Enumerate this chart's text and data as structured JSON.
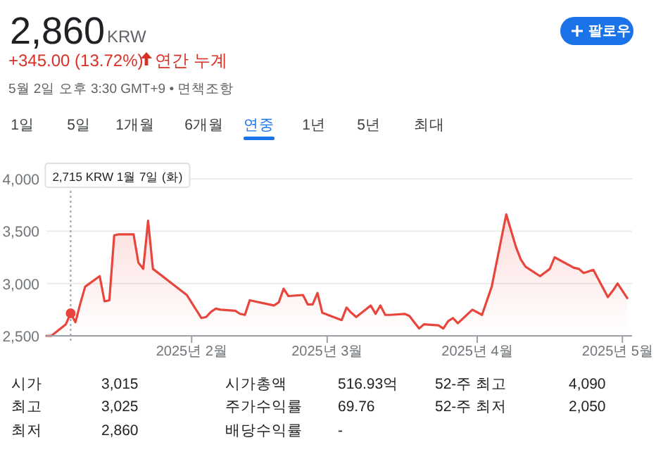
{
  "chart_data": {
    "type": "area",
    "title": "2,860",
    "color": "#e8453c",
    "x": [
      "2025-01-02",
      "2025-01-03",
      "2025-01-06",
      "2025-01-07",
      "2025-01-08",
      "2025-01-09",
      "2025-01-10",
      "2025-01-13",
      "2025-01-14",
      "2025-01-15",
      "2025-01-16",
      "2025-01-17",
      "2025-01-20",
      "2025-01-21",
      "2025-01-22",
      "2025-01-23",
      "2025-01-24",
      "2025-01-31",
      "2025-02-03",
      "2025-02-04",
      "2025-02-05",
      "2025-02-06",
      "2025-02-07",
      "2025-02-10",
      "2025-02-11",
      "2025-02-12",
      "2025-02-13",
      "2025-02-14",
      "2025-02-17",
      "2025-02-18",
      "2025-02-19",
      "2025-02-20",
      "2025-02-21",
      "2025-02-24",
      "2025-02-25",
      "2025-02-26",
      "2025-02-27",
      "2025-02-28",
      "2025-03-04",
      "2025-03-05",
      "2025-03-06",
      "2025-03-07",
      "2025-03-10",
      "2025-03-11",
      "2025-03-12",
      "2025-03-13",
      "2025-03-14",
      "2025-03-17",
      "2025-03-18",
      "2025-03-19",
      "2025-03-20",
      "2025-03-21",
      "2025-03-24",
      "2025-03-25",
      "2025-03-26",
      "2025-03-27",
      "2025-03-28",
      "2025-03-31",
      "2025-04-02",
      "2025-04-04",
      "2025-04-07",
      "2025-04-09",
      "2025-04-10",
      "2025-04-11",
      "2025-04-14",
      "2025-04-16",
      "2025-04-17",
      "2025-04-21",
      "2025-04-22",
      "2025-04-23",
      "2025-04-25",
      "2025-04-28",
      "2025-04-29",
      "2025-04-30",
      "2025-05-02"
    ],
    "values": [
      2500,
      2500,
      2610,
      2715,
      2630,
      2810,
      2970,
      3070,
      2830,
      2840,
      3460,
      3470,
      3470,
      3200,
      3140,
      3600,
      3140,
      2890,
      2670,
      2680,
      2730,
      2760,
      2750,
      2740,
      2710,
      2700,
      2840,
      2830,
      2800,
      2790,
      2820,
      2950,
      2880,
      2890,
      2800,
      2800,
      2910,
      2720,
      2650,
      2770,
      2720,
      2680,
      2790,
      2710,
      2790,
      2700,
      2700,
      2710,
      2690,
      2630,
      2570,
      2610,
      2600,
      2570,
      2640,
      2670,
      2620,
      2750,
      2700,
      2970,
      3660,
      3350,
      3230,
      3160,
      3070,
      3140,
      3250,
      3150,
      3140,
      3100,
      3130,
      2870,
      2930,
      3000,
      2860
    ],
    "xlim": [
      "2025-01-02",
      "2025-05-03"
    ],
    "xticks": [
      {
        "value": "2025-02-01",
        "label": "2025년 2월"
      },
      {
        "value": "2025-03-01",
        "label": "2025년 3월"
      },
      {
        "value": "2025-04-01",
        "label": "2025년 4월"
      },
      {
        "value": "2025-05-01",
        "label": "2025년 5월"
      }
    ],
    "ylim": [
      2500,
      4000
    ],
    "yticks": [
      {
        "value": 2500,
        "label": "2,500"
      },
      {
        "value": 3000,
        "label": "3,000"
      },
      {
        "value": 3500,
        "label": "3,500"
      },
      {
        "value": 4000,
        "label": "4,000"
      }
    ],
    "grid": "y",
    "ref_lines": [
      {
        "axis": "x",
        "value": "2025-01-07",
        "label": "2,715 KRW  1월 7일 (화)",
        "color": "#9aa0a6",
        "line_style": "dotted"
      }
    ],
    "annotations": [
      "KRW",
      "+345.00 (13.72%)",
      "연간 누계",
      "5월 2일 오후 3:30 GMT+9 • 면책조항",
      "팔로우",
      "1일",
      "5일",
      "1개월",
      "6개월",
      "연중",
      "1년",
      "5년",
      "최대",
      "시가",
      "3,015",
      "시가총액",
      "516.93억",
      "52-주 최고",
      "4,090",
      "최고",
      "3,025",
      "주가수익률",
      "69.76",
      "52-주 최저",
      "2,050",
      "최저",
      "2,860",
      "배당수익률",
      "-"
    ]
  }
}
